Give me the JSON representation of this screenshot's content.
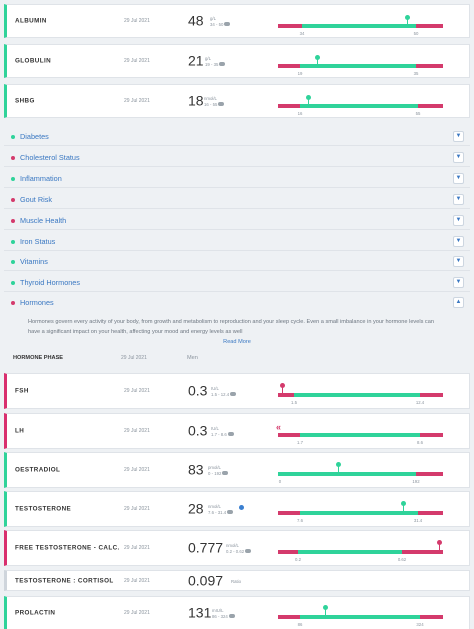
{
  "colors": {
    "optimal": "#2fd39a",
    "out_of_range": "#d43a6c",
    "link": "#3a78c2"
  },
  "top_markers": [
    {
      "name": "ALBUMIN",
      "date": "29 Jul 2021",
      "value": "48",
      "unit": "g/L",
      "range": "34 - 50",
      "low": "34",
      "high": "50",
      "status": "green"
    },
    {
      "name": "GLOBULIN",
      "date": "29 Jul 2021",
      "value": "21",
      "unit": "g/L",
      "range": "19 - 35",
      "low": "19",
      "high": "35",
      "status": "green"
    },
    {
      "name": "SHBG",
      "date": "29 Jul 2021",
      "value": "18",
      "unit": "nmol/L",
      "range": "16 - 55",
      "low": "16",
      "high": "55",
      "status": "green"
    }
  ],
  "categories": [
    {
      "label": "Diabetes",
      "status": "green",
      "icon": "chevron-down-icon"
    },
    {
      "label": "Cholesterol Status",
      "status": "red",
      "icon": "chevron-down-icon"
    },
    {
      "label": "Inflammation",
      "status": "green",
      "icon": "chevron-down-icon"
    },
    {
      "label": "Gout Risk",
      "status": "red",
      "icon": "chevron-down-icon"
    },
    {
      "label": "Muscle Health",
      "status": "red",
      "icon": "chevron-down-icon"
    },
    {
      "label": "Iron Status",
      "status": "green",
      "icon": "chevron-down-icon"
    },
    {
      "label": "Vitamins",
      "status": "green",
      "icon": "chevron-down-icon"
    },
    {
      "label": "Thyroid Hormones",
      "status": "green",
      "icon": "chevron-down-icon"
    },
    {
      "label": "Hormones",
      "status": "red",
      "icon": "chevron-up-icon"
    }
  ],
  "hormones": {
    "description": "Hormones govern every activity of your body, from growth and metabolism to reproduction and your sleep cycle. Even a small imbalance in your hormone levels can have a significant impact on your health, affecting your mood and energy levels as well",
    "read_more": "Read More",
    "phase": {
      "label": "HORMONE PHASE",
      "date": "29 Jul 2021",
      "value": "Men"
    },
    "markers": [
      {
        "name": "FSH",
        "date": "29 Jul 2021",
        "value": "0.3",
        "unit": "IU/L",
        "range": "1.5 - 12.4",
        "low": "1.5",
        "high": "12.4",
        "status": "red"
      },
      {
        "name": "LH",
        "date": "29 Jul 2021",
        "value": "0.3",
        "unit": "IU/L",
        "range": "1.7 - 8.6",
        "low": "1.7",
        "high": "8.6",
        "status": "red",
        "below_scale_marker": "«"
      },
      {
        "name": "OESTRADIOL",
        "date": "29 Jul 2021",
        "value": "83",
        "unit": "pmol/L",
        "range": "0 - 192",
        "low": "0",
        "high": "192",
        "status": "green"
      },
      {
        "name": "TESTOSTERONE",
        "date": "29 Jul 2021",
        "value": "28",
        "unit": "nmol/L",
        "range": "7.6 - 31.4",
        "low": "7.6",
        "high": "31.4",
        "status": "green"
      },
      {
        "name": "FREE TESTOSTERONE - CALC.",
        "date": "29 Jul 2021",
        "value": "0.777",
        "unit": "nmol/L",
        "range": "0.2 - 0.62",
        "low": "0.2",
        "high": "0.62",
        "status": "red"
      },
      {
        "name": "TESTOSTERONE : CORTISOL",
        "date": "29 Jul 2021",
        "value": "0.097",
        "unit": "Ratio",
        "status": "grey"
      },
      {
        "name": "PROLACTIN",
        "date": "29 Jul 2021",
        "value": "131",
        "unit": "mIU/L",
        "range": "86 - 324",
        "low": "86",
        "high": "324",
        "status": "green"
      }
    ]
  }
}
